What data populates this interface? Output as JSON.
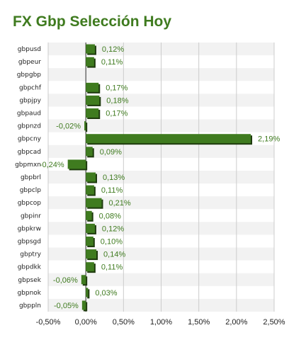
{
  "chart_data": {
    "type": "bar",
    "orientation": "horizontal",
    "title": "FX Gbp Selección Hoy",
    "categories": [
      "gbpusd",
      "gbpeur",
      "gbpgbp",
      "gbpchf",
      "gbpjpy",
      "gbpaud",
      "gbpnzd",
      "gbpcny",
      "gbpcad",
      "gbpmxn",
      "gbpbrl",
      "gbpclp",
      "gbpcop",
      "gbpinr",
      "gbpkrw",
      "gbpsgd",
      "gbptry",
      "gbpdkk",
      "gbpsek",
      "gbpnok",
      "gbppln"
    ],
    "values": [
      0.12,
      0.11,
      null,
      0.17,
      0.18,
      0.17,
      -0.02,
      2.19,
      0.09,
      -0.24,
      0.13,
      0.11,
      0.21,
      0.08,
      0.12,
      0.1,
      0.14,
      0.11,
      -0.06,
      0.03,
      -0.05
    ],
    "value_labels": [
      "0,12%",
      "0,11%",
      "",
      "0,17%",
      "0,18%",
      "0,17%",
      "-0,02%",
      "2,19%",
      "0,09%",
      "-0,24%",
      "0,13%",
      "0,11%",
      "0,21%",
      "0,08%",
      "0,12%",
      "0,10%",
      "0,14%",
      "0,11%",
      "-0,06%",
      "0,03%",
      "-0,05%"
    ],
    "xlim": [
      -0.5,
      2.5
    ],
    "xticks": [
      -0.5,
      0,
      0.5,
      1.0,
      1.5,
      2.0,
      2.5
    ],
    "xtick_labels": [
      "-0,50%",
      "0,00%",
      "0,50%",
      "1,00%",
      "1,50%",
      "2,00%",
      "2,50%"
    ],
    "grid": true,
    "colors": {
      "bar": "#3f7b1f",
      "bar_shadow": "#1e3a0e",
      "label": "#3f7b1f",
      "grid": "#cccccc",
      "band": "#f2f2f2"
    }
  }
}
